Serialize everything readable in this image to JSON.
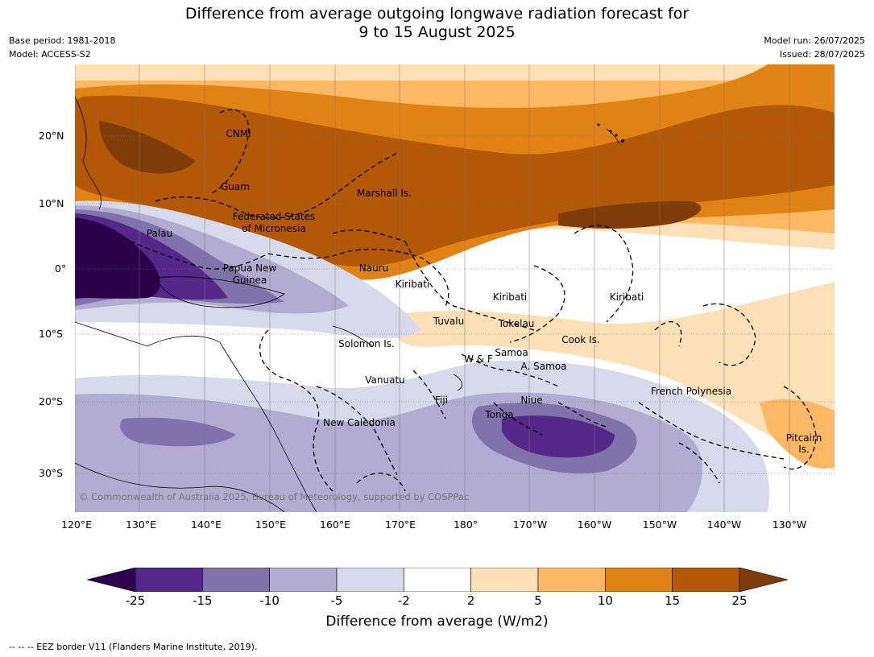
{
  "title": {
    "line1": "Difference from average outgoing longwave radiation forecast for",
    "line2": "9 to 15 August 2025"
  },
  "meta_left": {
    "base_period": "Base period: 1981-2018",
    "model": "Model: ACCESS-S2"
  },
  "meta_right": {
    "model_run": "Model run: 26/07/2025",
    "issued": "Issued: 28/07/2025"
  },
  "lat_labels": [
    "20°N",
    "10°N",
    "0°",
    "10°S",
    "20°S",
    "30°S"
  ],
  "lon_labels": [
    "120°E",
    "130°E",
    "140°E",
    "150°E",
    "160°E",
    "170°E",
    "180°",
    "170°W",
    "160°W",
    "150°W",
    "140°W",
    "130°W"
  ],
  "places": [
    {
      "name": "CNMI"
    },
    {
      "name": "Guam"
    },
    {
      "name": "Marshall Is."
    },
    {
      "name": "Federated States"
    },
    {
      "name": "of Micronesia"
    },
    {
      "name": "Palau"
    },
    {
      "name": "Papua New"
    },
    {
      "name": "Guinea"
    },
    {
      "name": "Nauru"
    },
    {
      "name": "Kiribati"
    },
    {
      "name": "Kiribati"
    },
    {
      "name": "Kiribati"
    },
    {
      "name": "Tuvalu"
    },
    {
      "name": "Tokelau"
    },
    {
      "name": "Cook Is."
    },
    {
      "name": "Solomon Is."
    },
    {
      "name": "W & F"
    },
    {
      "name": "Samoa"
    },
    {
      "name": "A. Samoa"
    },
    {
      "name": "Vanuatu"
    },
    {
      "name": "Fiji"
    },
    {
      "name": "Niue"
    },
    {
      "name": "Tonga"
    },
    {
      "name": "French Polynesia"
    },
    {
      "name": "New Caledonia"
    },
    {
      "name": "Pitcairn"
    },
    {
      "name": "Is."
    }
  ],
  "copyright": "© Commonwealth of Australia 2025, Bureau of Meteorology, supported by COSPPac",
  "colorbar": {
    "ticks": [
      "-25",
      "-15",
      "-10",
      "-5",
      "-2",
      "2",
      "5",
      "10",
      "15",
      "25"
    ],
    "colors": [
      "#2d004b",
      "#542788",
      "#8073ac",
      "#b2abd2",
      "#d8daeb",
      "#ffffff",
      "#fee0b6",
      "#fdb863",
      "#e08214",
      "#b35806",
      "#7f3b08"
    ],
    "title": "Difference from average (W/m2)"
  },
  "footnote": "--  --  -- EEZ border V11 (Flanders Marine Institute, 2019)."
}
